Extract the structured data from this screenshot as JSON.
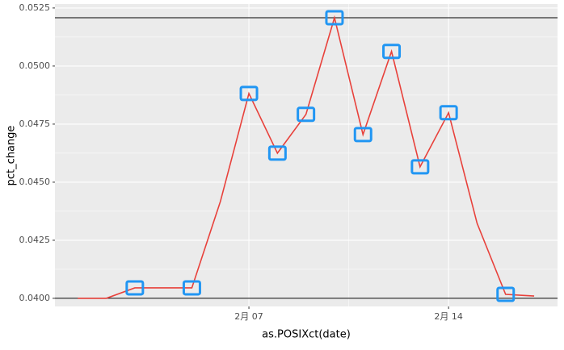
{
  "chart_data": {
    "type": "line",
    "x_label": "as.POSIXct(date)",
    "y_label": "pct_change",
    "x": [
      1,
      2,
      3,
      4,
      5,
      6,
      7,
      8,
      9,
      10,
      11,
      12,
      13,
      14,
      15,
      16,
      17
    ],
    "series": [
      {
        "color": "#e8413b",
        "values": [
          0.04,
          0.04,
          0.04045,
          0.04045,
          0.04045,
          0.04417,
          0.04882,
          0.04625,
          0.04792,
          0.05208,
          0.04705,
          0.05063,
          0.04566,
          0.04799,
          0.04323,
          0.04017,
          0.0401
        ]
      }
    ],
    "highlight_indices": [
      2,
      4,
      6,
      7,
      8,
      9,
      10,
      11,
      12,
      13,
      15
    ],
    "highlight_color": "#2196f3",
    "hlines": [
      0.05208,
      0.04
    ],
    "xlim": [
      0.2,
      17.82
    ],
    "xticks": [
      {
        "value": 7,
        "label": "2月 07"
      },
      {
        "value": 14,
        "label": "2月 14"
      }
    ],
    "ylim": [
      0.03965,
      0.05267
    ],
    "yticks": [
      {
        "value": 0.04,
        "label": "0.0400"
      },
      0.0425,
      {
        "value": 0.045,
        "label": "0.0450"
      },
      0.0475,
      {
        "value": 0.05,
        "label": "0.0500"
      },
      0.0525
    ],
    "grid": true
  }
}
